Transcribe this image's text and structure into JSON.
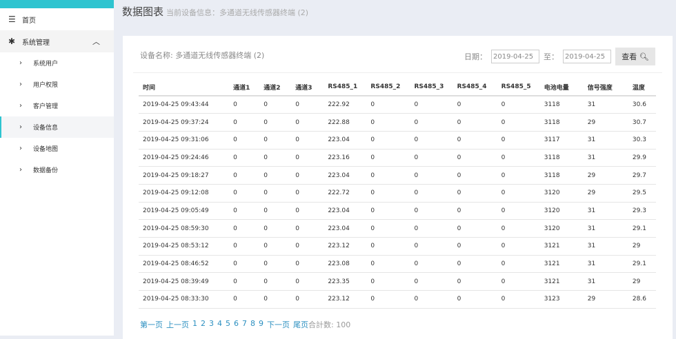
{
  "sidebar": {
    "home": "首页",
    "group": "系统管理",
    "items": [
      "系统用户",
      "用户权限",
      "客户管理",
      "设备信息",
      "设备地图",
      "数据备份"
    ],
    "selected": 3
  },
  "header": {
    "title": "数据图表",
    "subtitle": "当前设备信息：多通道无线传感器终端 (2)"
  },
  "card": {
    "device_name": "设备名称: 多通道无线传感器终端 (2)",
    "date_label": "日期：",
    "date_from": "2019-04-25",
    "to_label": "至：",
    "date_to": "2019-04-25",
    "view_button": "查看"
  },
  "table": {
    "columns": [
      "时间",
      "通道1",
      "通道2",
      "通道3",
      "RS485_1",
      "RS485_2",
      "RS485_3",
      "RS485_4",
      "RS485_5",
      "电池电量",
      "信号强度",
      "温度"
    ],
    "rows": [
      [
        "2019-04-25 09:43:44",
        "0",
        "0",
        "0",
        "222.92",
        "0",
        "0",
        "0",
        "0",
        "3118",
        "31",
        "30.6"
      ],
      [
        "2019-04-25 09:37:24",
        "0",
        "0",
        "0",
        "222.88",
        "0",
        "0",
        "0",
        "0",
        "3118",
        "29",
        "30.7"
      ],
      [
        "2019-04-25 09:31:06",
        "0",
        "0",
        "0",
        "223.04",
        "0",
        "0",
        "0",
        "0",
        "3117",
        "31",
        "30.3"
      ],
      [
        "2019-04-25 09:24:46",
        "0",
        "0",
        "0",
        "223.16",
        "0",
        "0",
        "0",
        "0",
        "3118",
        "31",
        "29.9"
      ],
      [
        "2019-04-25 09:18:27",
        "0",
        "0",
        "0",
        "223.04",
        "0",
        "0",
        "0",
        "0",
        "3118",
        "29",
        "29.7"
      ],
      [
        "2019-04-25 09:12:08",
        "0",
        "0",
        "0",
        "222.72",
        "0",
        "0",
        "0",
        "0",
        "3120",
        "29",
        "29.5"
      ],
      [
        "2019-04-25 09:05:49",
        "0",
        "0",
        "0",
        "223.04",
        "0",
        "0",
        "0",
        "0",
        "3120",
        "31",
        "29.3"
      ],
      [
        "2019-04-25 08:59:30",
        "0",
        "0",
        "0",
        "223.04",
        "0",
        "0",
        "0",
        "0",
        "3120",
        "31",
        "29.1"
      ],
      [
        "2019-04-25 08:53:12",
        "0",
        "0",
        "0",
        "223.12",
        "0",
        "0",
        "0",
        "0",
        "3121",
        "31",
        "29"
      ],
      [
        "2019-04-25 08:46:52",
        "0",
        "0",
        "0",
        "223.08",
        "0",
        "0",
        "0",
        "0",
        "3121",
        "31",
        "29.1"
      ],
      [
        "2019-04-25 08:39:49",
        "0",
        "0",
        "0",
        "223.35",
        "0",
        "0",
        "0",
        "0",
        "3121",
        "31",
        "29"
      ],
      [
        "2019-04-25 08:33:30",
        "0",
        "0",
        "0",
        "223.12",
        "0",
        "0",
        "0",
        "0",
        "3123",
        "29",
        "28.6"
      ]
    ]
  },
  "pager": {
    "first": "第一页",
    "prev": "上一页",
    "pages": [
      "1",
      "2",
      "3",
      "4",
      "5",
      "6",
      "7",
      "8",
      "9"
    ],
    "next": "下一页",
    "last": "尾页",
    "total": "合計数: 100"
  }
}
